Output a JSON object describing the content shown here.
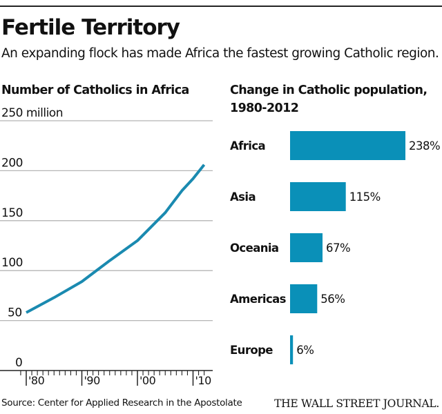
{
  "header": {
    "title": "Fertile Territory",
    "subtitle": "An expanding flock has made Africa the fastest growing Catholic region."
  },
  "footer": {
    "source": "Source: Center for Applied Research in the Apostolate",
    "brand": "THE WALL STREET JOURNAL."
  },
  "colors": {
    "line": "#1a8ab0",
    "bar": "#0a90b8",
    "grid": "#b5b5b5",
    "axis": "#222222"
  },
  "chart_data": [
    {
      "type": "line",
      "title": "Number of Catholics in Africa",
      "xlabel": "",
      "ylabel": "",
      "y_unit_label": "250 million",
      "ylim": [
        0,
        250
      ],
      "xlim": [
        1978.5,
        2013
      ],
      "yticks": [
        0,
        50,
        100,
        150,
        200,
        250
      ],
      "ytick_labels": [
        "0",
        "50",
        "100",
        "150",
        "200",
        "250 million"
      ],
      "xticks": [
        1980,
        1990,
        2000,
        2010
      ],
      "xtick_labels": [
        "'80",
        "'90",
        "'00",
        "'10"
      ],
      "grid": true,
      "series": [
        {
          "name": "Catholics in Africa (millions)",
          "x": [
            1980,
            1985,
            1990,
            1995,
            2000,
            2005,
            2008,
            2010,
            2012
          ],
          "values": [
            58,
            73,
            89,
            110,
            130,
            158,
            180,
            192,
            206
          ]
        }
      ]
    },
    {
      "type": "bar",
      "orientation": "horizontal",
      "title": "Change in Catholic population, 1980-2012",
      "title_lines": [
        "Change in Catholic population,",
        "1980-2012"
      ],
      "categories": [
        "Africa",
        "Asia",
        "Oceania",
        "Americas",
        "Europe"
      ],
      "values": [
        238,
        115,
        67,
        56,
        6
      ],
      "value_labels": [
        "238%",
        "115%",
        "67%",
        "56%",
        "6%"
      ],
      "xlim": [
        0,
        238
      ],
      "grid": false
    }
  ]
}
